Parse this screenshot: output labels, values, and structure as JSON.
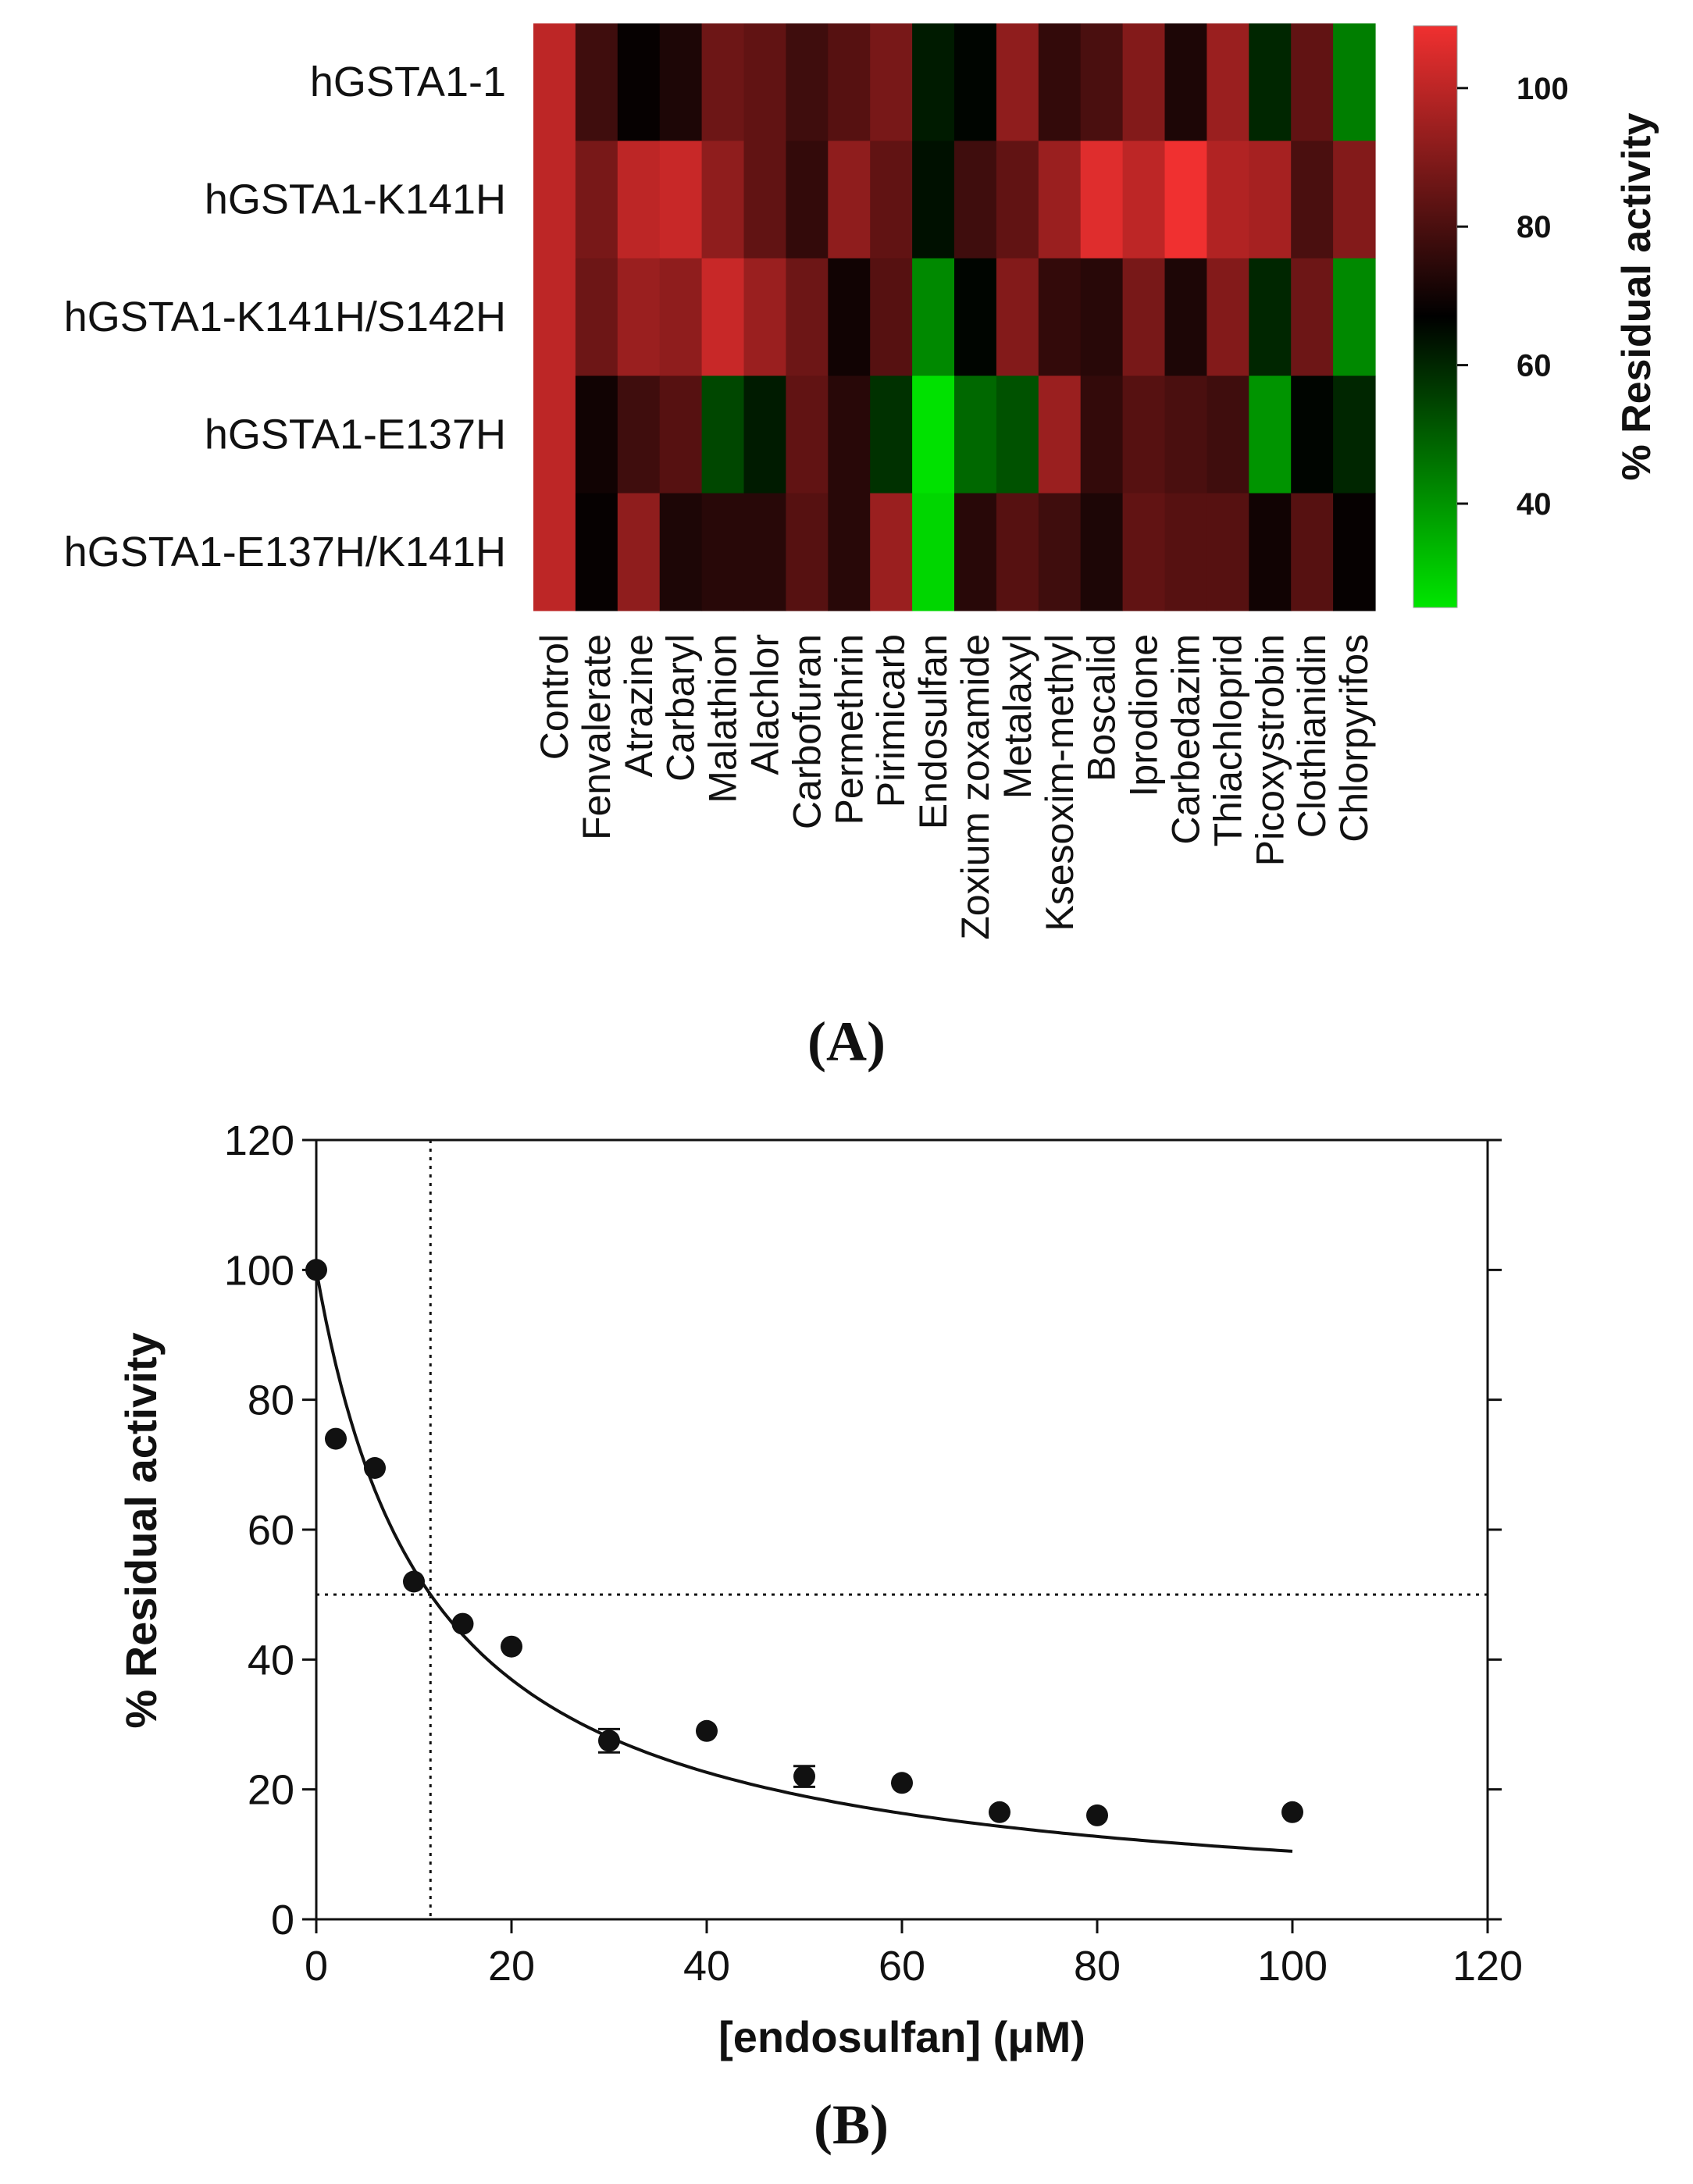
{
  "panels": {
    "a_label": "(A)",
    "b_label": "(B)"
  },
  "chart_data": [
    {
      "type": "heatmap",
      "title": "",
      "rows": [
        "hGSTA1-1",
        "hGSTA1-K141H",
        "hGSTA1-K141H/S142H",
        "hGSTA1-E137H",
        "hGSTA1-E137H/K141H"
      ],
      "columns": [
        "Control",
        "Fenvalerate",
        "Atrazine",
        "Carbaryl",
        "Malathion",
        "Alachlor",
        "Carbofuran",
        "Permethrin",
        "Pirimicarb",
        "Endosulfan",
        "Zoxium zoxamide",
        "Metalaxyl",
        "Ksesoxim-methyl",
        "Boscalid",
        "Iprodione",
        "Carbedazim",
        "Thiachloprid",
        "Picoxystrobin",
        "Clothianidin",
        "Chlorpyrifos"
      ],
      "values": [
        [
          100,
          78,
          68,
          72,
          86,
          84,
          78,
          82,
          88,
          62,
          66,
          92,
          76,
          80,
          90,
          72,
          94,
          60,
          84,
          44
        ],
        [
          100,
          88,
          100,
          102,
          92,
          84,
          76,
          92,
          84,
          64,
          78,
          84,
          94,
          106,
          100,
          110,
          98,
          96,
          80,
          90
        ],
        [
          100,
          86,
          94,
          92,
          102,
          94,
          86,
          70,
          82,
          42,
          66,
          90,
          76,
          74,
          88,
          72,
          90,
          60,
          86,
          42
        ],
        [
          100,
          70,
          78,
          82,
          54,
          62,
          84,
          74,
          58,
          26,
          48,
          52,
          94,
          76,
          82,
          80,
          78,
          40,
          66,
          60
        ],
        [
          100,
          68,
          92,
          72,
          74,
          74,
          82,
          74,
          94,
          28,
          74,
          82,
          78,
          72,
          84,
          82,
          82,
          70,
          82,
          68
        ]
      ],
      "colorbar": {
        "label": "% Residual activity",
        "ticks": [
          40,
          60,
          80,
          100
        ],
        "range": [
          25,
          109
        ],
        "low_color": "#00e600",
        "mid_color": "#000000",
        "high_color": "#f03030",
        "mid_value": 67
      }
    },
    {
      "type": "scatter",
      "title": "",
      "xlabel": "[endosulfan] (μM)",
      "ylabel": "% Residual activity",
      "xlim": [
        0,
        120
      ],
      "ylim": [
        0,
        120
      ],
      "xticks": [
        0,
        20,
        40,
        60,
        80,
        100,
        120
      ],
      "yticks": [
        0,
        20,
        40,
        60,
        80,
        100,
        120
      ],
      "series": [
        {
          "name": "endosulfan",
          "x": [
            0,
            2,
            6,
            10,
            15,
            20,
            30,
            40,
            50,
            60,
            70,
            80,
            100
          ],
          "y": [
            100,
            74,
            69.5,
            52,
            45.5,
            42,
            27.5,
            29,
            22,
            21,
            16.5,
            16,
            16.5
          ],
          "err": [
            0,
            0,
            0,
            0,
            0,
            0,
            1.8,
            0,
            1.6,
            0,
            0,
            0,
            0
          ]
        }
      ],
      "fit": {
        "model": "IC50 hyperbolic",
        "top": 100,
        "ic50": 11.7
      },
      "reference_lines": {
        "y": 50,
        "x": 11.7
      }
    }
  ]
}
